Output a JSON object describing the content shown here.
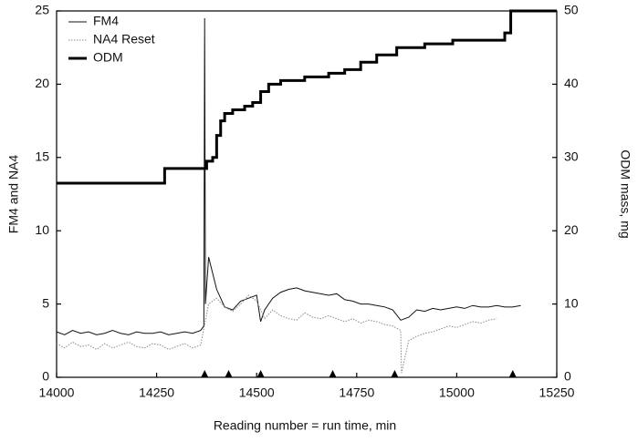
{
  "chart_data": {
    "type": "line",
    "xlabel": "Reading number = run time, min",
    "ylabel": "FM4 and NA4",
    "y2label": "ODM mass, mg",
    "xlim": [
      14000,
      15250
    ],
    "xticks": [
      14000,
      14250,
      14500,
      14750,
      15000,
      15250
    ],
    "ylim": [
      0,
      25
    ],
    "yticks": [
      0,
      5,
      10,
      15,
      20,
      25
    ],
    "y2lim": [
      0,
      50
    ],
    "y2ticks": [
      0,
      10,
      20,
      30,
      40,
      50
    ],
    "legend": "upper-left",
    "markers": [
      14370,
      14430,
      14510,
      14690,
      14845,
      15140
    ],
    "series": [
      {
        "name": "FM4",
        "color": "#111111",
        "style": "solid",
        "width": 1,
        "x": [
          14000,
          14020,
          14040,
          14060,
          14080,
          14100,
          14120,
          14140,
          14160,
          14180,
          14200,
          14220,
          14240,
          14260,
          14280,
          14300,
          14320,
          14340,
          14360,
          14368,
          14370,
          14372,
          14380,
          14400,
          14420,
          14440,
          14460,
          14480,
          14500,
          14510,
          14520,
          14540,
          14560,
          14580,
          14600,
          14620,
          14640,
          14660,
          14680,
          14700,
          14720,
          14740,
          14760,
          14780,
          14800,
          14820,
          14840,
          14860,
          14880,
          14900,
          14920,
          14940,
          14960,
          14980,
          15000,
          15020,
          15040,
          15060,
          15080,
          15100,
          15120,
          15140,
          15160
        ],
        "values": [
          3.1,
          2.9,
          3.2,
          3.0,
          3.1,
          2.9,
          3.0,
          3.2,
          3.0,
          2.9,
          3.1,
          3.0,
          3.0,
          3.1,
          2.9,
          3.0,
          3.1,
          3.0,
          3.2,
          3.5,
          24.5,
          5.0,
          8.2,
          6.0,
          4.8,
          4.6,
          5.2,
          5.4,
          5.6,
          3.8,
          4.6,
          5.4,
          5.8,
          6.0,
          6.1,
          5.9,
          5.8,
          5.7,
          5.6,
          5.7,
          5.3,
          5.2,
          5.0,
          5.0,
          4.9,
          4.8,
          4.6,
          3.9,
          4.1,
          4.6,
          4.5,
          4.7,
          4.6,
          4.7,
          4.8,
          4.7,
          4.9,
          4.8,
          4.8,
          4.9,
          4.8,
          4.8,
          4.9
        ]
      },
      {
        "name": "NA4 Reset",
        "color": "#8a8a8a",
        "style": "dotted",
        "width": 1,
        "x": [
          14000,
          14020,
          14040,
          14060,
          14080,
          14100,
          14120,
          14140,
          14160,
          14180,
          14200,
          14220,
          14240,
          14260,
          14280,
          14300,
          14320,
          14340,
          14360,
          14380,
          14400,
          14420,
          14440,
          14460,
          14480,
          14500,
          14520,
          14540,
          14560,
          14580,
          14600,
          14620,
          14640,
          14660,
          14680,
          14700,
          14720,
          14740,
          14760,
          14780,
          14800,
          14820,
          14840,
          14860,
          14862,
          14880,
          14900,
          14920,
          14940,
          14960,
          14980,
          15000,
          15020,
          15040,
          15060,
          15080,
          15100
        ],
        "values": [
          2.3,
          2.0,
          2.4,
          2.1,
          2.2,
          1.9,
          2.3,
          2.0,
          2.2,
          2.4,
          2.1,
          2.0,
          2.3,
          2.2,
          1.9,
          2.1,
          2.3,
          2.0,
          2.2,
          5.0,
          5.4,
          4.8,
          4.5,
          5.0,
          5.6,
          5.2,
          4.0,
          4.6,
          4.2,
          4.0,
          3.9,
          4.4,
          4.1,
          4.0,
          4.2,
          4.0,
          3.8,
          4.0,
          3.7,
          3.9,
          3.8,
          3.6,
          3.5,
          3.2,
          0.3,
          2.5,
          2.8,
          3.0,
          3.1,
          3.3,
          3.5,
          3.4,
          3.6,
          3.8,
          3.7,
          3.9,
          4.0
        ]
      },
      {
        "name": "ODM",
        "color": "#000000",
        "style": "solid",
        "width": 3,
        "axis": "y2",
        "step": "post",
        "x": [
          14000,
          14270,
          14375,
          14390,
          14400,
          14410,
          14420,
          14440,
          14470,
          14490,
          14510,
          14530,
          14560,
          14620,
          14680,
          14720,
          14760,
          14800,
          14850,
          14920,
          14990,
          15120,
          15135
        ],
        "values": [
          26.5,
          28.5,
          29.5,
          30,
          33,
          35,
          36,
          36.5,
          37,
          37.5,
          39,
          40,
          40.5,
          41,
          41.5,
          42,
          43,
          44,
          45,
          45.5,
          46,
          47,
          50
        ]
      }
    ]
  }
}
